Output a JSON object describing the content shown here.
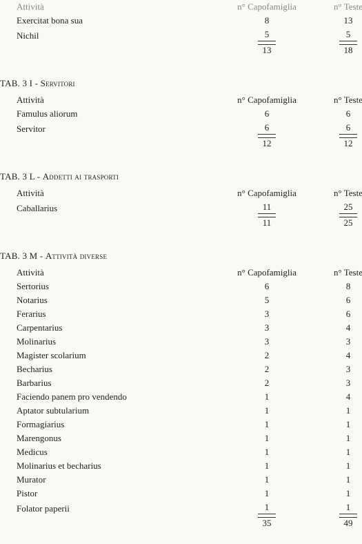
{
  "headers": {
    "attivita": "Attività",
    "capofamiglia": "n° Capofamiglia",
    "teste": "n° Teste"
  },
  "captions": {
    "t3i_prefix": "TAB. 3 I - ",
    "t3i_sc": "Servitori",
    "t3l_prefix": "TAB. 3 L - ",
    "t3l_sc": "Addetti ai trasporti",
    "t3m_prefix": "TAB. 3 M - ",
    "t3m_sc": "Attività diverse"
  },
  "frag": {
    "rows": [
      {
        "label": "Exercitat bona sua",
        "cap": "8",
        "teste": "13"
      },
      {
        "label": "Nichil",
        "cap": "5",
        "teste": "5"
      }
    ],
    "total": {
      "cap": "13",
      "teste": "18"
    }
  },
  "t3i": {
    "rows": [
      {
        "label": "Famulus aliorum",
        "cap": "6",
        "teste": "6"
      },
      {
        "label": "Servitor",
        "cap": "6",
        "teste": "6"
      }
    ],
    "total": {
      "cap": "12",
      "teste": "12"
    }
  },
  "t3l": {
    "rows": [
      {
        "label": "Caballarius",
        "cap": "11",
        "teste": "25"
      }
    ],
    "total": {
      "cap": "11",
      "teste": "25"
    }
  },
  "t3m": {
    "rows": [
      {
        "label": "Sertorius",
        "cap": "6",
        "teste": "8"
      },
      {
        "label": "Notarius",
        "cap": "5",
        "teste": "6"
      },
      {
        "label": "Ferarius",
        "cap": "3",
        "teste": "6"
      },
      {
        "label": "Carpentarius",
        "cap": "3",
        "teste": "4"
      },
      {
        "label": "Molinarius",
        "cap": "3",
        "teste": "3"
      },
      {
        "label": "Magister scolarium",
        "cap": "2",
        "teste": "4"
      },
      {
        "label": "Becharius",
        "cap": "2",
        "teste": "3"
      },
      {
        "label": "Barbarius",
        "cap": "2",
        "teste": "3"
      },
      {
        "label": "Faciendo panem pro vendendo",
        "cap": "1",
        "teste": "4"
      },
      {
        "label": "Aptator subtularium",
        "cap": "1",
        "teste": "1"
      },
      {
        "label": "Formagiarius",
        "cap": "1",
        "teste": "1"
      },
      {
        "label": "Marengonus",
        "cap": "1",
        "teste": "1"
      },
      {
        "label": "Medicus",
        "cap": "1",
        "teste": "1"
      },
      {
        "label": "Molinarius et becharius",
        "cap": "1",
        "teste": "1"
      },
      {
        "label": "Murator",
        "cap": "1",
        "teste": "1"
      },
      {
        "label": "Pistor",
        "cap": "1",
        "teste": "1"
      },
      {
        "label": "Folator paperii",
        "cap": "1",
        "teste": "1"
      }
    ],
    "total": {
      "cap": "35",
      "teste": "49"
    }
  }
}
